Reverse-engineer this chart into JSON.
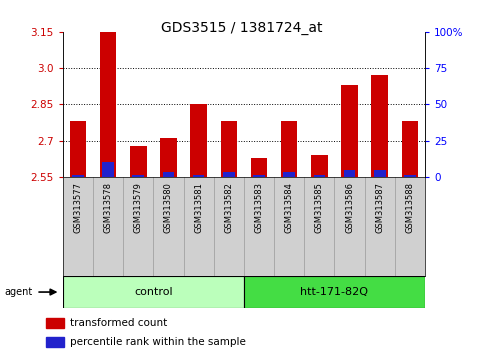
{
  "title": "GDS3515 / 1381724_at",
  "samples": [
    "GSM313577",
    "GSM313578",
    "GSM313579",
    "GSM313580",
    "GSM313581",
    "GSM313582",
    "GSM313583",
    "GSM313584",
    "GSM313585",
    "GSM313586",
    "GSM313587",
    "GSM313588"
  ],
  "red_values": [
    2.78,
    3.18,
    2.68,
    2.71,
    2.85,
    2.78,
    2.63,
    2.78,
    2.64,
    2.93,
    2.97,
    2.78
  ],
  "blue_values": [
    2.56,
    2.61,
    2.56,
    2.57,
    2.56,
    2.57,
    2.56,
    2.57,
    2.56,
    2.58,
    2.58,
    2.56
  ],
  "baseline": 2.55,
  "ylim_left": [
    2.55,
    3.15
  ],
  "yticks_left": [
    2.55,
    2.7,
    2.85,
    3.0,
    3.15
  ],
  "yticks_right": [
    0,
    25,
    50,
    75,
    100
  ],
  "grid_lines": [
    2.7,
    2.85,
    3.0
  ],
  "groups": [
    {
      "label": "control",
      "start": 0,
      "end": 6,
      "color": "#bbffbb"
    },
    {
      "label": "htt-171-82Q",
      "start": 6,
      "end": 12,
      "color": "#44dd44"
    }
  ],
  "agent_label": "agent",
  "legend_red": "transformed count",
  "legend_blue": "percentile rank within the sample",
  "bar_width": 0.55,
  "red_color": "#cc0000",
  "blue_color": "#2222cc",
  "title_fontsize": 10,
  "tick_fontsize": 7.5,
  "sample_fontsize": 6,
  "legend_fontsize": 7.5,
  "group_fontsize": 8
}
